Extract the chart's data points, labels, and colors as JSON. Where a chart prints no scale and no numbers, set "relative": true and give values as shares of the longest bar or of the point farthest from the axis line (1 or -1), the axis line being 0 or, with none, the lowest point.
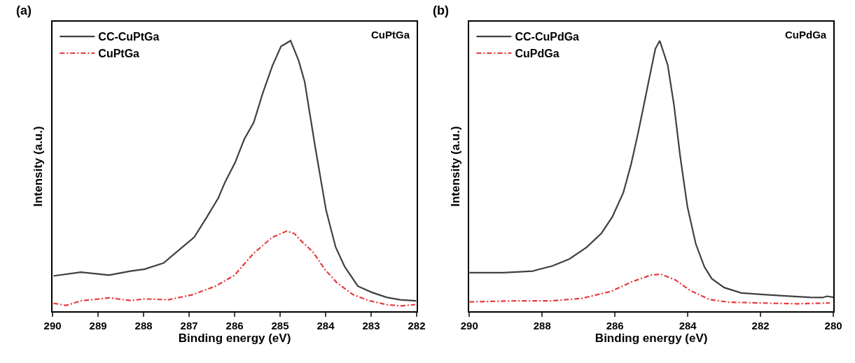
{
  "chart_data": [
    {
      "type": "line",
      "relative": true,
      "title": "(a)",
      "annotations": [
        "CuPtGa"
      ],
      "xlabel": "Binding energy (eV)",
      "ylabel": "Intensity (a.u.)",
      "xlim": [
        290,
        282
      ],
      "xticks": [
        290,
        289,
        288,
        287,
        286,
        285,
        284,
        283,
        282
      ],
      "legend": "top left",
      "marker": "none",
      "series": [
        {
          "name": "CC-CuPtGa",
          "color": "#404040",
          "line_style": "solid",
          "x": [
            289.98,
            289.38,
            288.76,
            288.29,
            287.98,
            287.56,
            287.3,
            286.89,
            286.62,
            286.36,
            286.21,
            285.99,
            285.79,
            285.58,
            285.38,
            285.17,
            284.98,
            284.77,
            284.59,
            284.46,
            284.23,
            283.99,
            283.78,
            283.58,
            283.29,
            282.98,
            282.66,
            282.36,
            282.01
          ],
          "values": [
            0.13,
            0.144,
            0.133,
            0.148,
            0.155,
            0.178,
            0.215,
            0.273,
            0.345,
            0.418,
            0.477,
            0.549,
            0.635,
            0.698,
            0.807,
            0.907,
            0.979,
            1,
            0.925,
            0.848,
            0.608,
            0.373,
            0.237,
            0.164,
            0.092,
            0.069,
            0.051,
            0.042,
            0.038
          ]
        },
        {
          "name": "CuPtGa",
          "color": "#e8383d",
          "line_style": "dashdot",
          "x": [
            289.98,
            289.7,
            289.38,
            288.76,
            288.29,
            287.98,
            287.46,
            286.94,
            286.42,
            286.0,
            285.58,
            285.17,
            284.85,
            284.69,
            284.54,
            284.28,
            284.02,
            283.76,
            283.39,
            283.03,
            282.66,
            282.36,
            282.03
          ],
          "values": [
            0.029,
            0.021,
            0.038,
            0.049,
            0.039,
            0.045,
            0.042,
            0.06,
            0.092,
            0.133,
            0.214,
            0.273,
            0.296,
            0.287,
            0.26,
            0.219,
            0.155,
            0.106,
            0.06,
            0.038,
            0.024,
            0.019,
            0.024
          ]
        }
      ]
    },
    {
      "type": "line",
      "relative": true,
      "title": "(b)",
      "annotations": [
        "CuPdGa"
      ],
      "xlabel": "Binding energy (eV)",
      "ylabel": "Intensity (a.u.)",
      "xlim": [
        290,
        280
      ],
      "xticks": [
        290,
        288,
        286,
        284,
        282,
        280
      ],
      "legend": "top left",
      "marker": "none",
      "series": [
        {
          "name": "CC-CuPdGa",
          "color": "#404040",
          "line_style": "solid",
          "x": [
            290.0,
            289.07,
            288.26,
            287.72,
            287.25,
            286.78,
            286.37,
            286.07,
            285.77,
            285.56,
            285.36,
            285.19,
            285.02,
            284.89,
            284.77,
            284.55,
            284.38,
            284.21,
            284.01,
            283.78,
            283.54,
            283.34,
            283.0,
            282.53,
            281.99,
            281.31,
            280.64,
            280.3,
            280.17,
            280.0
          ],
          "values": [
            0.142,
            0.142,
            0.148,
            0.167,
            0.193,
            0.236,
            0.288,
            0.349,
            0.438,
            0.541,
            0.661,
            0.773,
            0.885,
            0.97,
            1,
            0.91,
            0.764,
            0.575,
            0.387,
            0.249,
            0.163,
            0.12,
            0.087,
            0.067,
            0.062,
            0.056,
            0.051,
            0.05,
            0.055,
            0.051
          ]
        },
        {
          "name": "CuPdGa",
          "color": "#e8383d",
          "line_style": "dashdot",
          "x": [
            290.0,
            288.73,
            287.72,
            286.91,
            286.1,
            285.56,
            285.02,
            284.75,
            284.35,
            283.94,
            283.41,
            282.87,
            281.99,
            280.98,
            280.1
          ],
          "values": [
            0.034,
            0.038,
            0.038,
            0.047,
            0.073,
            0.107,
            0.133,
            0.137,
            0.116,
            0.077,
            0.043,
            0.033,
            0.03,
            0.027,
            0.03
          ]
        }
      ]
    }
  ]
}
